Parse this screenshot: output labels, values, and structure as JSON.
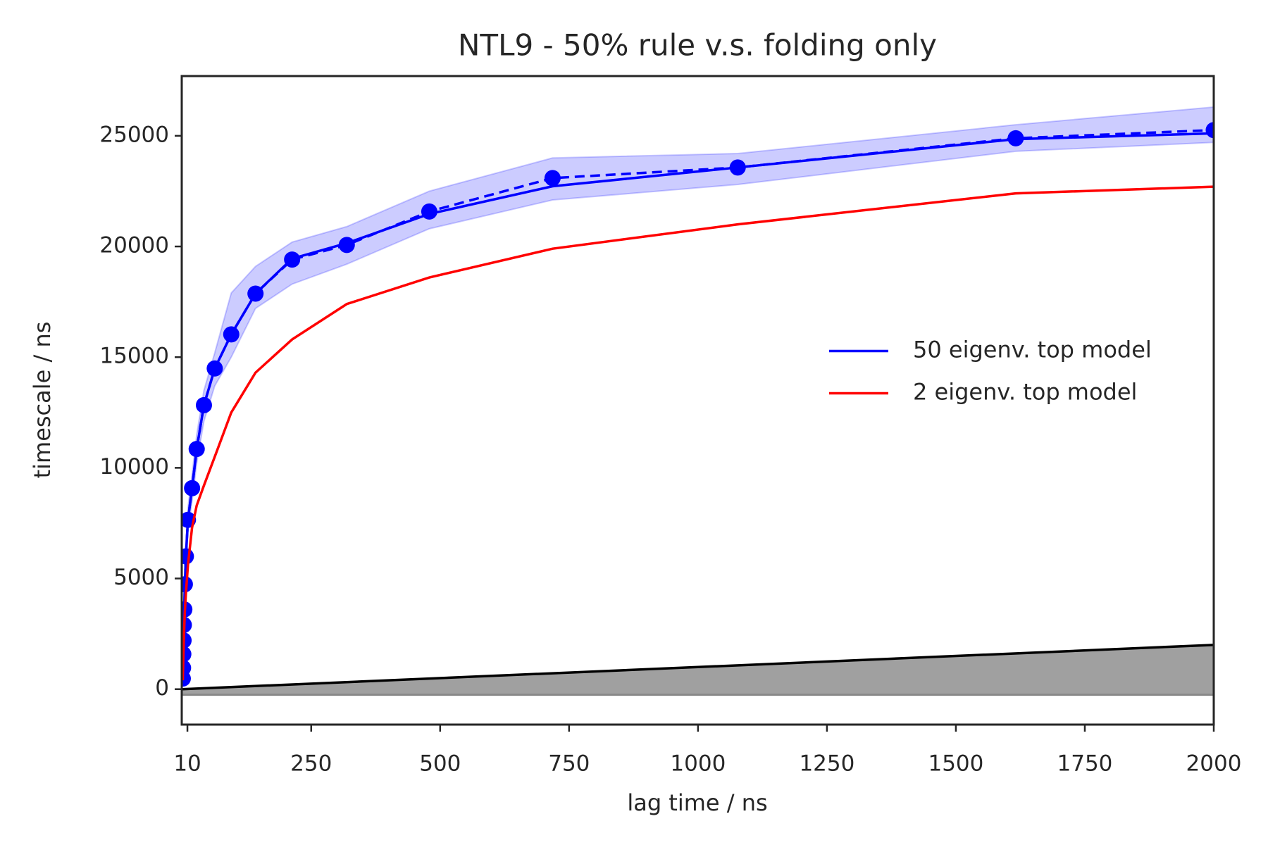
{
  "chart_data": {
    "type": "line",
    "title": "NTL9 - 50% rule v.s. folding only",
    "x_label": "lag time / ns",
    "y_label": "timescale / ns",
    "x": [
      1,
      1.5,
      2,
      2.5,
      3,
      4,
      5,
      7,
      11,
      19,
      28,
      42,
      63,
      95,
      142,
      213,
      319,
      479,
      718,
      1077,
      1616,
      2000
    ],
    "series": [
      {
        "color": "#0000ff",
        "linestyle": "dashed",
        "marker": "o",
        "values": [
          480,
          960,
          1580,
          2200,
          2900,
          3600,
          4740,
          6000,
          7650,
          9080,
          10850,
          12830,
          14490,
          16030,
          17870,
          19410,
          20070,
          21580,
          23090,
          23570,
          24890,
          25260
        ]
      },
      {
        "name": "50 eigenv. top model",
        "color": "#0000ff",
        "band_color": "#0000ff",
        "values": [
          480,
          960,
          1580,
          2200,
          2900,
          3600,
          4740,
          6000,
          7650,
          9080,
          10850,
          12830,
          14490,
          16030,
          17870,
          19450,
          20150,
          21470,
          22720,
          23570,
          24850,
          25110
        ],
        "lower": [
          300,
          700,
          1300,
          1900,
          2500,
          3200,
          4300,
          5500,
          7100,
          8500,
          10200,
          12100,
          13700,
          15000,
          17200,
          18300,
          19200,
          20800,
          22100,
          22800,
          24300,
          24700
        ],
        "upper": [
          700,
          1200,
          1900,
          2500,
          3300,
          4000,
          5200,
          6500,
          8200,
          9700,
          11500,
          13500,
          15200,
          17900,
          19100,
          20200,
          20900,
          22500,
          24000,
          24200,
          25500,
          26300
        ]
      },
      {
        "name": "2 eigenv. top model",
        "color": "#ff0000",
        "values": [
          400,
          900,
          1400,
          1800,
          2200,
          2900,
          3500,
          4300,
          5600,
          7300,
          8300,
          9200,
          10500,
          12500,
          14300,
          15800,
          17400,
          18600,
          19900,
          21000,
          22400,
          22700
        ]
      },
      {
        "color": "#000000",
        "fill_color": "#a0a0a0",
        "fill_to": -250,
        "x": [
          0,
          2000
        ],
        "values": [
          0,
          2000
        ]
      }
    ],
    "xlim": [
      -1,
      2000
    ],
    "xticks": [
      10,
      250,
      500,
      750,
      1000,
      1250,
      1500,
      1750,
      2000
    ],
    "ylim": [
      -1600,
      27700
    ],
    "yticks": [
      0,
      5000,
      10000,
      15000,
      20000,
      25000
    ],
    "grid": false,
    "legend": "center right"
  }
}
